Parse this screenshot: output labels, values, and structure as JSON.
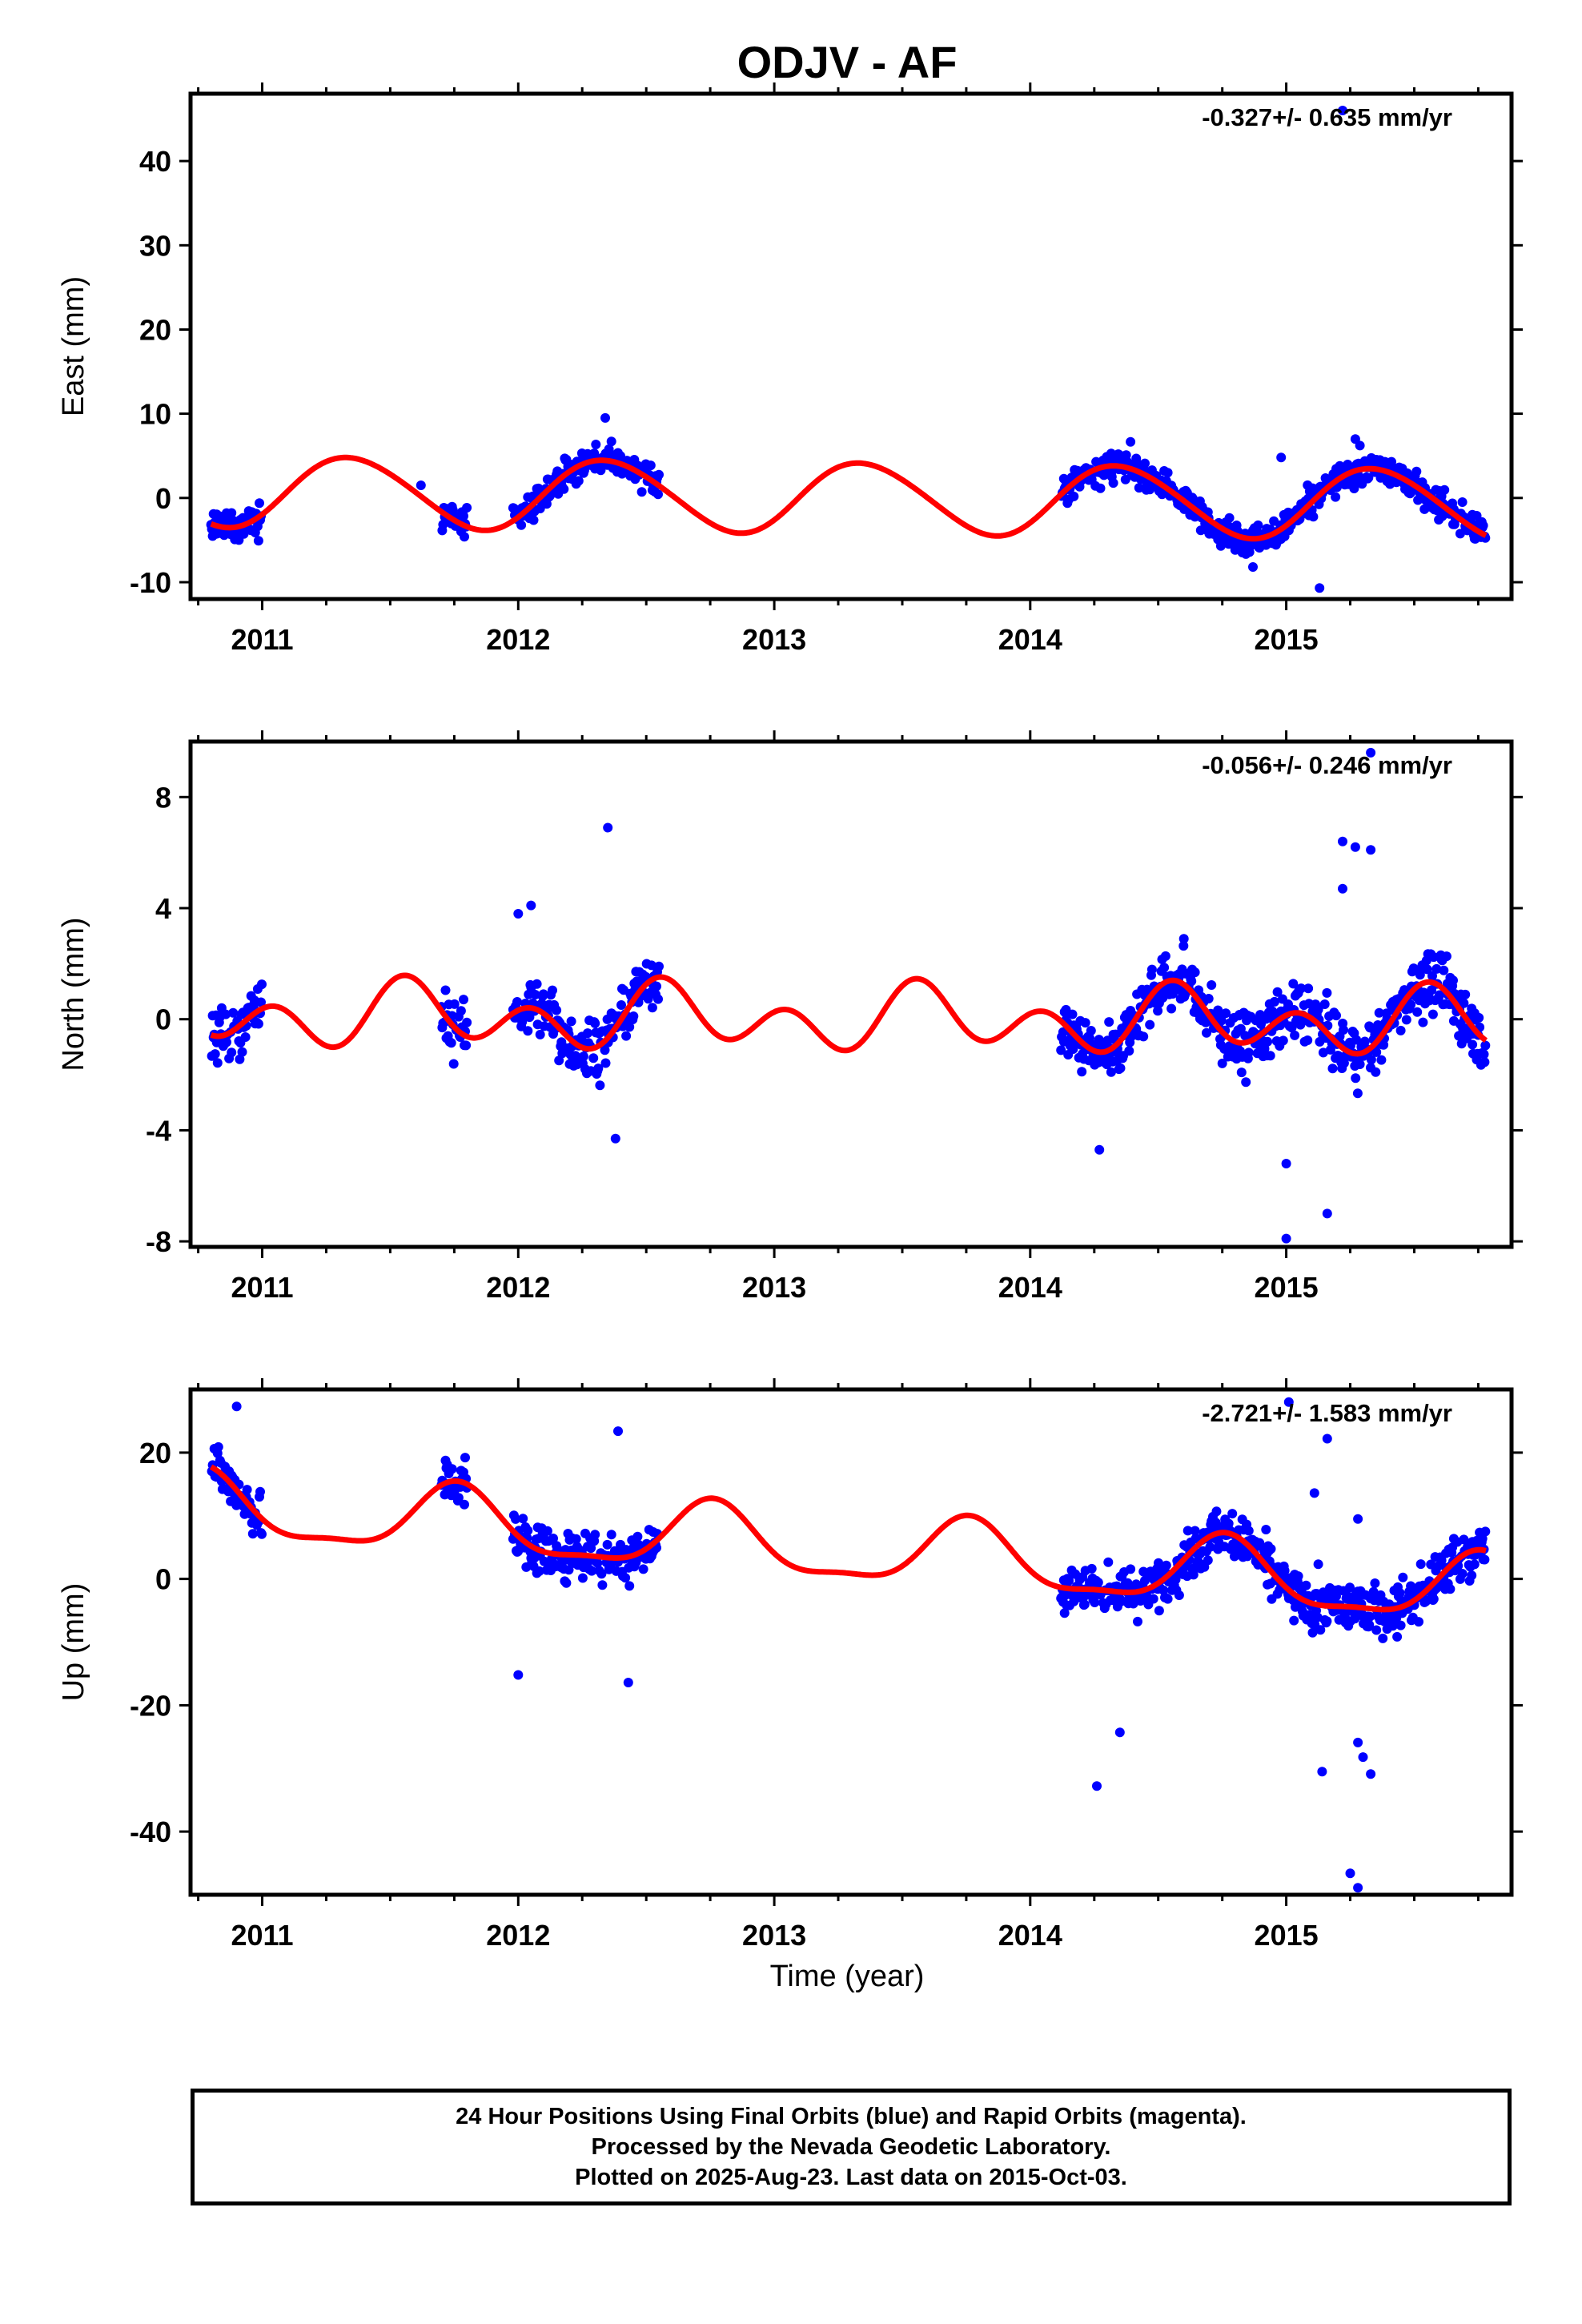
{
  "title": "ODJV - AF",
  "xlabel": "Time (year)",
  "colors": {
    "data": "#0000ff",
    "model": "#ff0000",
    "frame": "#000000"
  },
  "caption": {
    "line1": "24 Hour Positions Using Final Orbits (blue) and Rapid Orbits (magenta).",
    "line2": "Processed by the Nevada Geodetic Laboratory.",
    "line3": "Plotted on 2025-Aug-23. Last data on 2015-Oct-03."
  },
  "chart_data": [
    {
      "type": "scatter",
      "component": "East",
      "ylabel": "East (mm)",
      "rate": "-0.327+/- 0.635 mm/yr",
      "xlim": [
        2010.72,
        2015.88
      ],
      "ylim": [
        -12,
        48
      ],
      "x_ticks": [
        2011,
        2012,
        2013,
        2014,
        2015
      ],
      "y_ticks": [
        -10,
        0,
        10,
        20,
        30,
        40
      ],
      "x_tick_labels": [
        "2011",
        "2012",
        "2013",
        "2014",
        "2015"
      ],
      "y_tick_labels": [
        "-10",
        "0",
        "10",
        "20",
        "30",
        "40"
      ],
      "model": {
        "base": 0,
        "trend": -0.33,
        "ref": 2013.3,
        "annual_amp": 4.2,
        "annual_peak": 2011.35,
        "semiannual_amp": 0.3,
        "semiannual_peak": 2011.2
      },
      "observations": {
        "data_gaps": [
          [
            2010.8,
            2011.0
          ],
          [
            2011.7,
            2011.8
          ],
          [
            2011.98,
            2012.55
          ],
          [
            2014.12,
            2015.78
          ]
        ],
        "scatter_mm": 1.6,
        "outliers": [
          [
            2012.34,
            9.5
          ],
          [
            2014.87,
            -8.2
          ],
          [
            2014.98,
            4.8
          ],
          [
            2015.13,
            -10.7
          ],
          [
            2015.27,
            7.0
          ],
          [
            2015.22,
            46.0
          ],
          [
            2011.62,
            1.5
          ]
        ]
      }
    },
    {
      "type": "scatter",
      "component": "North",
      "ylabel": "North (mm)",
      "rate": "-0.056+/- 0.246 mm/yr",
      "xlim": [
        2010.72,
        2015.88
      ],
      "ylim": [
        -8.2,
        10
      ],
      "x_ticks": [
        2011,
        2012,
        2013,
        2014,
        2015
      ],
      "y_ticks": [
        -8,
        -4,
        0,
        4,
        8
      ],
      "x_tick_labels": [
        "2011",
        "2012",
        "2013",
        "2014",
        "2015"
      ],
      "y_tick_labels": [
        "-8",
        "-4",
        "0",
        "4",
        "8"
      ],
      "model": {
        "base": 0,
        "trend": -0.06,
        "ref": 2013.3,
        "annual_amp": 0.6,
        "annual_peak": 2011.6,
        "semiannual_amp": 0.9,
        "semiannual_peak": 2011.55
      },
      "observations": {
        "data_gaps": [
          [
            2010.8,
            2011.0
          ],
          [
            2011.7,
            2011.8
          ],
          [
            2011.98,
            2012.55
          ],
          [
            2014.12,
            2015.78
          ]
        ],
        "scatter_mm": 0.95,
        "outliers": [
          [
            2012.35,
            6.9
          ],
          [
            2012.38,
            -4.3
          ],
          [
            2014.27,
            -4.7
          ],
          [
            2015.0,
            -5.2
          ],
          [
            2015.0,
            -7.9
          ],
          [
            2015.16,
            -7.0
          ],
          [
            2015.33,
            9.6
          ],
          [
            2015.22,
            6.4
          ],
          [
            2015.27,
            6.2
          ],
          [
            2015.33,
            6.1
          ],
          [
            2015.22,
            4.7
          ],
          [
            2014.6,
            2.9
          ],
          [
            2012.0,
            3.8
          ],
          [
            2012.05,
            4.1
          ]
        ]
      }
    },
    {
      "type": "scatter",
      "component": "Up",
      "ylabel": "Up (mm)",
      "rate": "-2.721+/- 1.583 mm/yr",
      "xlim": [
        2010.72,
        2015.88
      ],
      "ylim": [
        -50,
        30
      ],
      "x_ticks": [
        2011,
        2012,
        2013,
        2014,
        2015
      ],
      "y_ticks": [
        -40,
        -20,
        0,
        20
      ],
      "x_tick_labels": [
        "2011",
        "2012",
        "2013",
        "2014",
        "2015"
      ],
      "y_tick_labels": [
        "-40",
        "-20",
        "0",
        "20"
      ],
      "model": {
        "base": 4.5,
        "trend": -2.72,
        "ref": 2013.3,
        "annual_amp": 5.2,
        "annual_peak": 2011.76,
        "semiannual_amp": 1.6,
        "semiannual_peak": 2011.76
      },
      "observations": {
        "data_gaps": [
          [
            2010.8,
            2011.0
          ],
          [
            2011.7,
            2011.8
          ],
          [
            2011.98,
            2012.55
          ],
          [
            2014.12,
            2015.78
          ]
        ],
        "scatter_mm": 3.6,
        "outliers": [
          [
            2010.9,
            27.3
          ],
          [
            2012.39,
            23.4
          ],
          [
            2012.0,
            -15.2
          ],
          [
            2012.43,
            -16.4
          ],
          [
            2014.26,
            -32.8
          ],
          [
            2014.35,
            -24.3
          ],
          [
            2015.01,
            28.0
          ],
          [
            2015.16,
            22.2
          ],
          [
            2015.14,
            -30.5
          ],
          [
            2015.25,
            -46.6
          ],
          [
            2015.28,
            -48.9
          ],
          [
            2015.28,
            -25.9
          ],
          [
            2015.3,
            -28.2
          ],
          [
            2015.33,
            -30.9
          ],
          [
            2015.11,
            13.6
          ],
          [
            2015.28,
            9.5
          ]
        ]
      }
    }
  ]
}
